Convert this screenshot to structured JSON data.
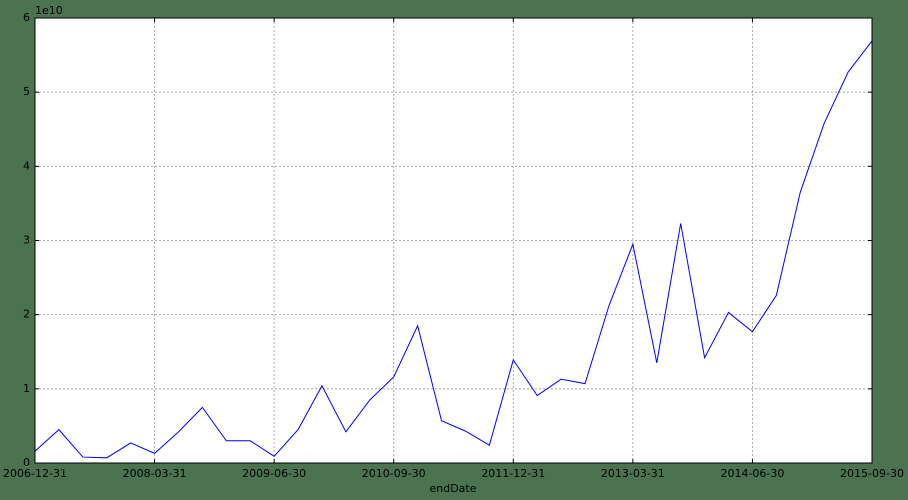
{
  "chart_data": {
    "type": "line",
    "x_label": "endDate",
    "y_offset_label": "1e10",
    "categories": [
      "2006-12-31",
      null,
      null,
      null,
      null,
      "2008-03-31",
      null,
      null,
      null,
      null,
      "2009-06-30",
      null,
      null,
      null,
      null,
      "2010-09-30",
      null,
      null,
      null,
      null,
      "2011-12-31",
      null,
      null,
      null,
      null,
      "2013-03-31",
      null,
      null,
      null,
      null,
      "2014-06-30",
      null,
      null,
      null,
      null,
      "2015-09-30"
    ],
    "series": [
      {
        "color": "#0000ff",
        "values": [
          0.16,
          0.45,
          0.08,
          0.07,
          0.27,
          0.13,
          0.42,
          0.75,
          0.3,
          0.3,
          0.09,
          0.45,
          1.04,
          0.42,
          0.85,
          1.16,
          1.85,
          0.57,
          0.43,
          0.24,
          1.39,
          0.91,
          1.13,
          1.07,
          2.12,
          2.95,
          1.35,
          3.23,
          1.42,
          2.03,
          1.77,
          2.26,
          3.65,
          4.58,
          5.27,
          5.69
        ]
      }
    ],
    "ylim": [
      0,
      6
    ],
    "yticks": [
      0,
      1,
      2,
      3,
      4,
      5,
      6
    ],
    "grid": true
  }
}
